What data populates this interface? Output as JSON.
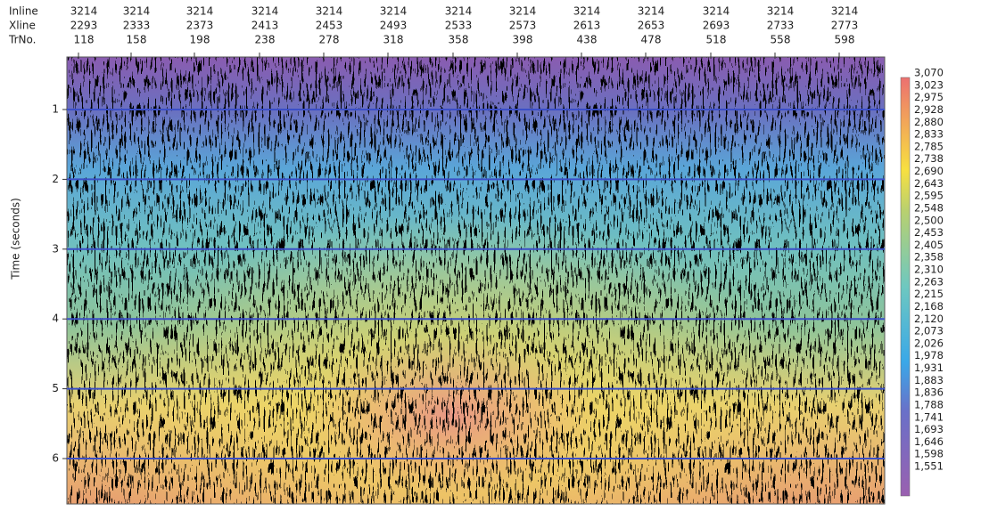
{
  "header": {
    "rows": [
      {
        "label": "Inline",
        "values": [
          "3214",
          "3214",
          "3214",
          "3214",
          "3214",
          "3214",
          "3214",
          "3214",
          "3214",
          "3214",
          "3214",
          "3214",
          "3214"
        ]
      },
      {
        "label": "Xline",
        "values": [
          "2293",
          "2333",
          "2373",
          "2413",
          "2453",
          "2493",
          "2533",
          "2573",
          "2613",
          "2653",
          "2693",
          "2733",
          "2773"
        ]
      },
      {
        "label": "TrNo.",
        "values": [
          "118",
          "158",
          "198",
          "238",
          "278",
          "318",
          "358",
          "398",
          "438",
          "478",
          "518",
          "558",
          "598"
        ]
      }
    ]
  },
  "time_axis": {
    "label": "Time (seconds)",
    "ticks": [
      "1",
      "2",
      "3",
      "4",
      "5",
      "6"
    ]
  },
  "colorbar": {
    "labels": [
      "3,070",
      "3,023",
      "2,975",
      "2,928",
      "2,880",
      "2,833",
      "2,785",
      "2,738",
      "2,690",
      "2,643",
      "2,595",
      "2,548",
      "2,500",
      "2,453",
      "2,405",
      "2,358",
      "2,310",
      "2,263",
      "2,215",
      "2,168",
      "2,120",
      "2,073",
      "2,026",
      "1,978",
      "1,931",
      "1,883",
      "1,836",
      "1,788",
      "1,741",
      "1,693",
      "1,646",
      "1,598",
      "1,551"
    ]
  }
}
